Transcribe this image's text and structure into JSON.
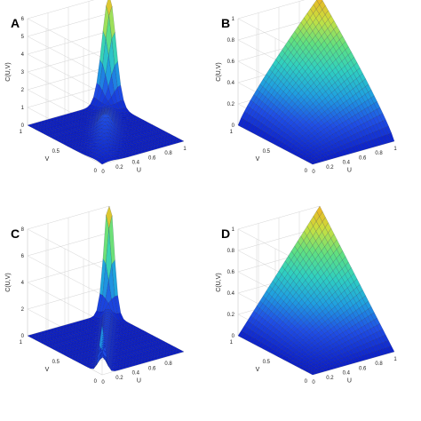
{
  "chart_data": [
    {
      "panel": "A",
      "type": "surface",
      "surface": "density",
      "title": "",
      "xlabel": "U",
      "ylabel": "V",
      "zlabel": "C(U,V)",
      "x_ticks": [
        "0",
        "0.2",
        "0.4",
        "0.6",
        "0.8",
        "1"
      ],
      "y_ticks": [
        "0",
        "0.5",
        "1"
      ],
      "z_ticks": [
        "0",
        "1",
        "2",
        "3",
        "4",
        "5",
        "6"
      ],
      "zlim": [
        0,
        6
      ],
      "peak_value": 6,
      "grid": true
    },
    {
      "panel": "B",
      "type": "surface",
      "surface": "cdf",
      "title": "",
      "xlabel": "U",
      "ylabel": "V",
      "zlabel": "C(U,V)",
      "x_ticks": [
        "0",
        "0.2",
        "0.4",
        "0.6",
        "0.8",
        "1"
      ],
      "y_ticks": [
        "0",
        "0.5",
        "1"
      ],
      "z_ticks": [
        "0",
        "0.2",
        "0.4",
        "0.6",
        "0.8",
        "1"
      ],
      "zlim": [
        0,
        1
      ],
      "grid": true
    },
    {
      "panel": "C",
      "type": "surface",
      "surface": "density",
      "title": "",
      "xlabel": "U",
      "ylabel": "V",
      "zlabel": "C(U,V)",
      "x_ticks": [
        "0",
        "0.2",
        "0.4",
        "0.6",
        "0.8"
      ],
      "y_ticks": [
        "0",
        "0.5",
        "1"
      ],
      "z_ticks": [
        "0",
        "2",
        "4",
        "6",
        "8"
      ],
      "zlim": [
        0,
        8
      ],
      "peak_value": 8,
      "grid": true
    },
    {
      "panel": "D",
      "type": "surface",
      "surface": "cdf",
      "title": "",
      "xlabel": "U",
      "ylabel": "V",
      "zlabel": "C(U,V)",
      "x_ticks": [
        "0",
        "0.2",
        "0.4",
        "0.6",
        "0.8",
        "1"
      ],
      "y_ticks": [
        "0",
        "0.5",
        "1"
      ],
      "z_ticks": [
        "0",
        "0.2",
        "0.4",
        "0.6",
        "0.8",
        "1"
      ],
      "zlim": [
        0,
        1
      ],
      "grid": true
    }
  ],
  "colormap": [
    "#0b1fc8",
    "#1f4fe6",
    "#1fa0e0",
    "#2fd0c0",
    "#60e080",
    "#c8e040",
    "#f0b020"
  ]
}
